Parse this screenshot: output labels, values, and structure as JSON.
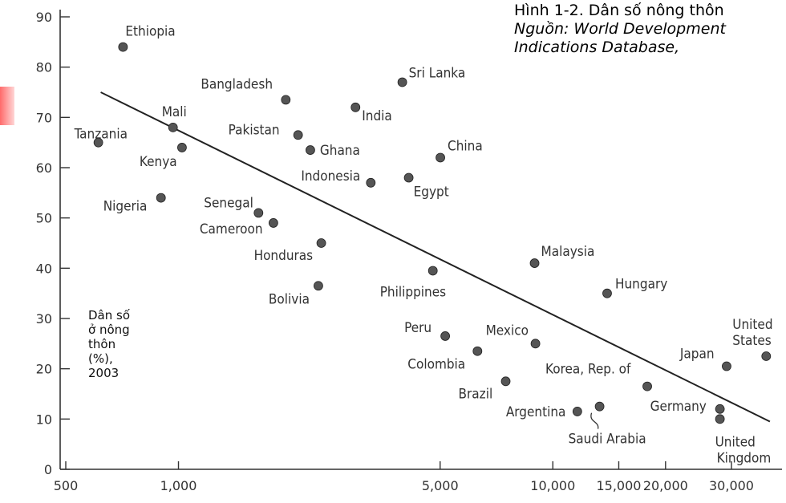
{
  "chart_data": {
    "type": "scatter",
    "title": "Hình 1-2. Dân số nông thôn",
    "source_lines": [
      "Nguồn: World Development",
      "Indications Database,"
    ],
    "ylabel_lines": [
      "Dân số",
      "ở nông",
      "thôn",
      "(%),",
      "2003"
    ],
    "xlabel": "",
    "x_scale": "log",
    "xlim": [
      500,
      40000
    ],
    "ylim": [
      0,
      92
    ],
    "x_ticks": [
      500,
      1000,
      5000,
      10000,
      15000,
      20000,
      30000
    ],
    "x_tick_labels": [
      "500",
      "1,000",
      "5,000",
      "10,000",
      "15,000",
      "20,000",
      "30,000"
    ],
    "y_ticks": [
      0,
      10,
      20,
      30,
      40,
      50,
      60,
      70,
      80,
      90
    ],
    "y_tick_labels": [
      "0",
      "10",
      "20",
      "30",
      "40",
      "50",
      "60",
      "70",
      "80",
      "90"
    ],
    "trend_line": {
      "x": [
        620,
        38000
      ],
      "y": [
        75,
        9.5
      ]
    },
    "points": [
      {
        "label": "Ethiopia",
        "x": 711,
        "y": 84
      },
      {
        "label": "Tanzania",
        "x": 611,
        "y": 65
      },
      {
        "label": "Mali",
        "x": 967,
        "y": 68
      },
      {
        "label": "Kenya",
        "x": 1022,
        "y": 64
      },
      {
        "label": "Nigeria",
        "x": 898,
        "y": 54
      },
      {
        "label": "Bangladesh",
        "x": 1935,
        "y": 73.5
      },
      {
        "label": "Pakistan",
        "x": 2087,
        "y": 66.5
      },
      {
        "label": "Ghana",
        "x": 2250,
        "y": 63.5
      },
      {
        "label": "India",
        "x": 2971,
        "y": 72
      },
      {
        "label": "Sri Lanka",
        "x": 3962,
        "y": 77
      },
      {
        "label": "China",
        "x": 5007,
        "y": 62
      },
      {
        "label": "Indonesia",
        "x": 3264,
        "y": 57
      },
      {
        "label": "Egypt",
        "x": 4121,
        "y": 58
      },
      {
        "label": "Senegal",
        "x": 1636,
        "y": 51
      },
      {
        "label": "Cameroon",
        "x": 1793,
        "y": 49
      },
      {
        "label": "Honduras",
        "x": 2407,
        "y": 45
      },
      {
        "label": "Bolivia",
        "x": 2364,
        "y": 36.5
      },
      {
        "label": "Philippines",
        "x": 4781,
        "y": 39.5
      },
      {
        "label": "Malaysia",
        "x": 8938,
        "y": 41
      },
      {
        "label": "Hungary",
        "x": 13965,
        "y": 35
      },
      {
        "label": "Peru",
        "x": 5159,
        "y": 26.5
      },
      {
        "label": "Mexico",
        "x": 8985,
        "y": 25
      },
      {
        "label": "Colombia",
        "x": 6290,
        "y": 23.5
      },
      {
        "label": "Brazil",
        "x": 7484,
        "y": 17.5
      },
      {
        "label": "Argentina",
        "x": 11626,
        "y": 11.5
      },
      {
        "label": "Saudi Arabia",
        "x": 13332,
        "y": 12.5
      },
      {
        "label": "Korea, Rep. of",
        "x": 17875,
        "y": 16.5
      },
      {
        "label": "Japan",
        "x": 29116,
        "y": 20.5
      },
      {
        "label": "United States",
        "x": 37143,
        "y": 22.5
      },
      {
        "label": "Germany",
        "x": 27944,
        "y": 12
      },
      {
        "label": "United Kingdom",
        "x": 27944,
        "y": 10
      }
    ]
  }
}
